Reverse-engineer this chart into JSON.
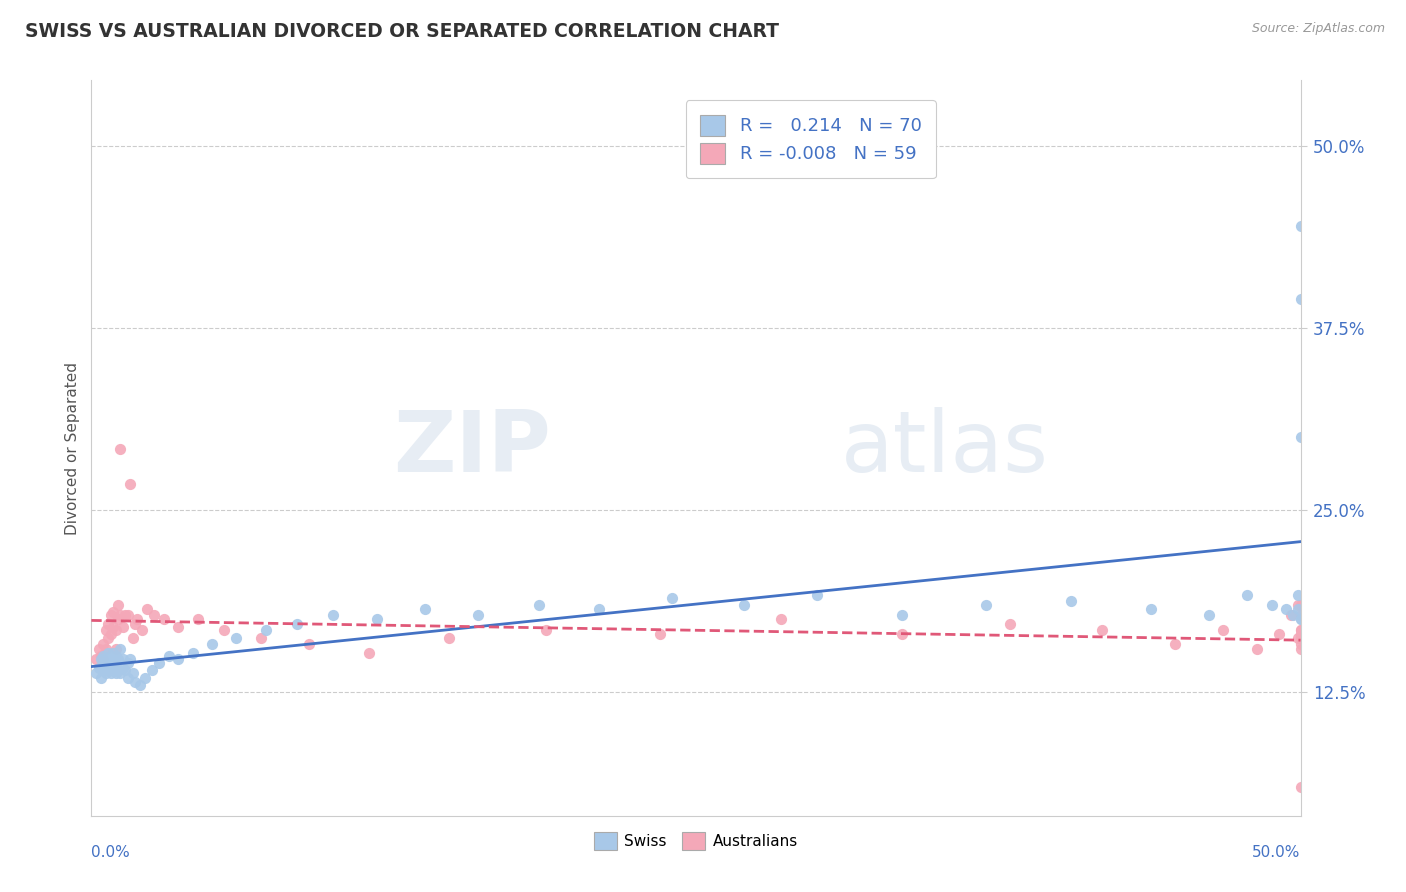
{
  "title": "SWISS VS AUSTRALIAN DIVORCED OR SEPARATED CORRELATION CHART",
  "source_text": "Source: ZipAtlas.com",
  "ylabel": "Divorced or Separated",
  "ytick_labels": [
    "12.5%",
    "25.0%",
    "37.5%",
    "50.0%"
  ],
  "ytick_values": [
    0.125,
    0.25,
    0.375,
    0.5
  ],
  "xlim": [
    0.0,
    0.5
  ],
  "ylim": [
    0.04,
    0.545
  ],
  "legend_swiss": "R =   0.214   N = 70",
  "legend_aus": "R = -0.008   N = 59",
  "swiss_color": "#a8c8e8",
  "aus_color": "#f4a8b8",
  "swiss_line_color": "#4472c4",
  "aus_line_color": "#e05878",
  "legend_text_color": "#4472c4",
  "swiss_x": [
    0.002,
    0.003,
    0.004,
    0.004,
    0.005,
    0.005,
    0.005,
    0.006,
    0.006,
    0.006,
    0.007,
    0.007,
    0.007,
    0.008,
    0.008,
    0.008,
    0.009,
    0.009,
    0.009,
    0.01,
    0.01,
    0.01,
    0.011,
    0.011,
    0.012,
    0.012,
    0.013,
    0.013,
    0.014,
    0.015,
    0.015,
    0.016,
    0.017,
    0.018,
    0.02,
    0.022,
    0.025,
    0.028,
    0.032,
    0.036,
    0.042,
    0.05,
    0.06,
    0.072,
    0.085,
    0.1,
    0.118,
    0.138,
    0.16,
    0.185,
    0.21,
    0.24,
    0.27,
    0.3,
    0.335,
    0.37,
    0.405,
    0.438,
    0.462,
    0.478,
    0.488,
    0.494,
    0.497,
    0.499,
    0.499,
    0.5,
    0.5,
    0.5,
    0.5,
    0.5
  ],
  "swiss_y": [
    0.138,
    0.142,
    0.148,
    0.135,
    0.145,
    0.14,
    0.15,
    0.148,
    0.142,
    0.138,
    0.152,
    0.145,
    0.14,
    0.15,
    0.138,
    0.145,
    0.152,
    0.14,
    0.148,
    0.145,
    0.138,
    0.15,
    0.148,
    0.14,
    0.155,
    0.138,
    0.148,
    0.142,
    0.14,
    0.145,
    0.135,
    0.148,
    0.138,
    0.132,
    0.13,
    0.135,
    0.14,
    0.145,
    0.15,
    0.148,
    0.152,
    0.158,
    0.162,
    0.168,
    0.172,
    0.178,
    0.175,
    0.182,
    0.178,
    0.185,
    0.182,
    0.19,
    0.185,
    0.192,
    0.178,
    0.185,
    0.188,
    0.182,
    0.178,
    0.192,
    0.185,
    0.182,
    0.178,
    0.192,
    0.182,
    0.175,
    0.3,
    0.445,
    0.395,
    0.175
  ],
  "aus_x": [
    0.002,
    0.003,
    0.004,
    0.005,
    0.005,
    0.006,
    0.006,
    0.007,
    0.007,
    0.008,
    0.008,
    0.009,
    0.009,
    0.01,
    0.01,
    0.011,
    0.011,
    0.012,
    0.012,
    0.013,
    0.014,
    0.015,
    0.016,
    0.017,
    0.018,
    0.019,
    0.021,
    0.023,
    0.026,
    0.03,
    0.036,
    0.044,
    0.055,
    0.07,
    0.09,
    0.115,
    0.148,
    0.188,
    0.235,
    0.285,
    0.335,
    0.38,
    0.418,
    0.448,
    0.468,
    0.482,
    0.491,
    0.496,
    0.499,
    0.499,
    0.5,
    0.5,
    0.5,
    0.5,
    0.5,
    0.5,
    0.5,
    0.5,
    0.5
  ],
  "aus_y": [
    0.148,
    0.155,
    0.15,
    0.158,
    0.148,
    0.168,
    0.155,
    0.162,
    0.172,
    0.165,
    0.178,
    0.17,
    0.18,
    0.168,
    0.155,
    0.175,
    0.185,
    0.178,
    0.292,
    0.17,
    0.178,
    0.178,
    0.268,
    0.162,
    0.172,
    0.175,
    0.168,
    0.182,
    0.178,
    0.175,
    0.17,
    0.175,
    0.168,
    0.162,
    0.158,
    0.152,
    0.162,
    0.168,
    0.165,
    0.175,
    0.165,
    0.172,
    0.168,
    0.158,
    0.168,
    0.155,
    0.165,
    0.178,
    0.185,
    0.162,
    0.168,
    0.155,
    0.162,
    0.168,
    0.178,
    0.185,
    0.158,
    0.165,
    0.06
  ],
  "watermark_zip": "ZIP",
  "watermark_atlas": "atlas"
}
